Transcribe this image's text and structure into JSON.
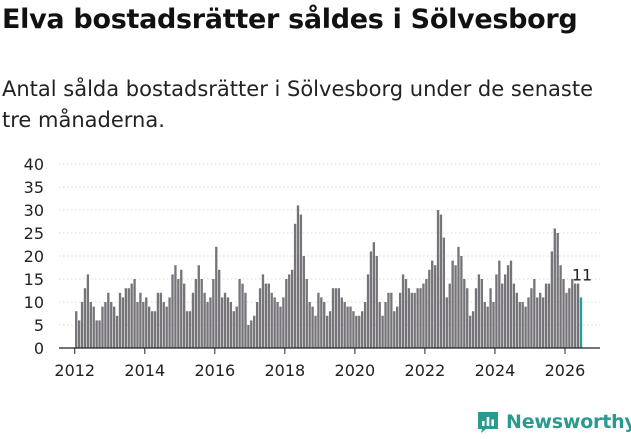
{
  "header": {
    "title": "Elva bostadsrätter såldes i Sölvesborg",
    "subtitle": "Antal sålda bostadsrätter i Sölvesborg under de senaste tre månaderna."
  },
  "brand": {
    "name": "Newsworthy",
    "icon": "newsworthy-logo-icon",
    "color": "#2a9a8e"
  },
  "colors": {
    "bar": "#767479",
    "highlight": "#2aa198",
    "grid": "#d9d9d9",
    "axis": "#222222"
  },
  "chart_data": {
    "type": "bar",
    "title": "Elva bostadsrätter såldes i Sölvesborg",
    "xlabel": "",
    "ylabel": "",
    "ylim": [
      0,
      40
    ],
    "yticks": [
      0,
      5,
      10,
      15,
      20,
      25,
      30,
      35,
      40
    ],
    "xticks": [
      {
        "label": "2012",
        "value": 2012
      },
      {
        "label": "2014",
        "value": 2014
      },
      {
        "label": "2016",
        "value": 2016
      },
      {
        "label": "2018",
        "value": 2018
      },
      {
        "label": "2020",
        "value": 2020
      },
      {
        "label": "2022",
        "value": 2022
      },
      {
        "label": "2024",
        "value": 2024
      },
      {
        "label": "2026",
        "value": 2026
      }
    ],
    "start": {
      "year": 2012,
      "month": 1
    },
    "frequency": "monthly",
    "values": [
      8,
      6,
      10,
      13,
      16,
      10,
      9,
      6,
      6,
      9,
      10,
      12,
      10,
      9,
      7,
      12,
      11,
      13,
      13,
      14,
      15,
      10,
      12,
      10,
      11,
      9,
      8,
      8,
      12,
      12,
      10,
      9,
      11,
      16,
      18,
      15,
      17,
      14,
      8,
      8,
      12,
      15,
      18,
      15,
      12,
      10,
      11,
      15,
      22,
      17,
      11,
      12,
      11,
      10,
      8,
      9,
      15,
      14,
      12,
      5,
      6,
      7,
      10,
      13,
      16,
      14,
      14,
      12,
      11,
      10,
      9,
      11,
      15,
      16,
      17,
      27,
      31,
      29,
      20,
      15,
      10,
      9,
      7,
      12,
      11,
      10,
      7,
      8,
      13,
      13,
      13,
      11,
      10,
      9,
      9,
      8,
      7,
      7,
      8,
      10,
      16,
      21,
      23,
      20,
      10,
      7,
      10,
      12,
      12,
      8,
      9,
      12,
      16,
      15,
      13,
      12,
      12,
      13,
      13,
      14,
      15,
      17,
      19,
      18,
      30,
      29,
      24,
      11,
      14,
      19,
      18,
      22,
      20,
      15,
      13,
      7,
      8,
      13,
      16,
      15,
      10,
      9,
      13,
      10,
      16,
      19,
      14,
      16,
      18,
      19,
      14,
      12,
      10,
      10,
      9,
      11,
      13,
      15,
      11,
      12,
      11,
      14,
      14,
      21,
      26,
      25,
      18,
      15,
      12,
      13,
      15,
      14,
      14,
      11
    ],
    "highlight_last": true,
    "annotation": {
      "label": "11",
      "target": "last"
    }
  }
}
